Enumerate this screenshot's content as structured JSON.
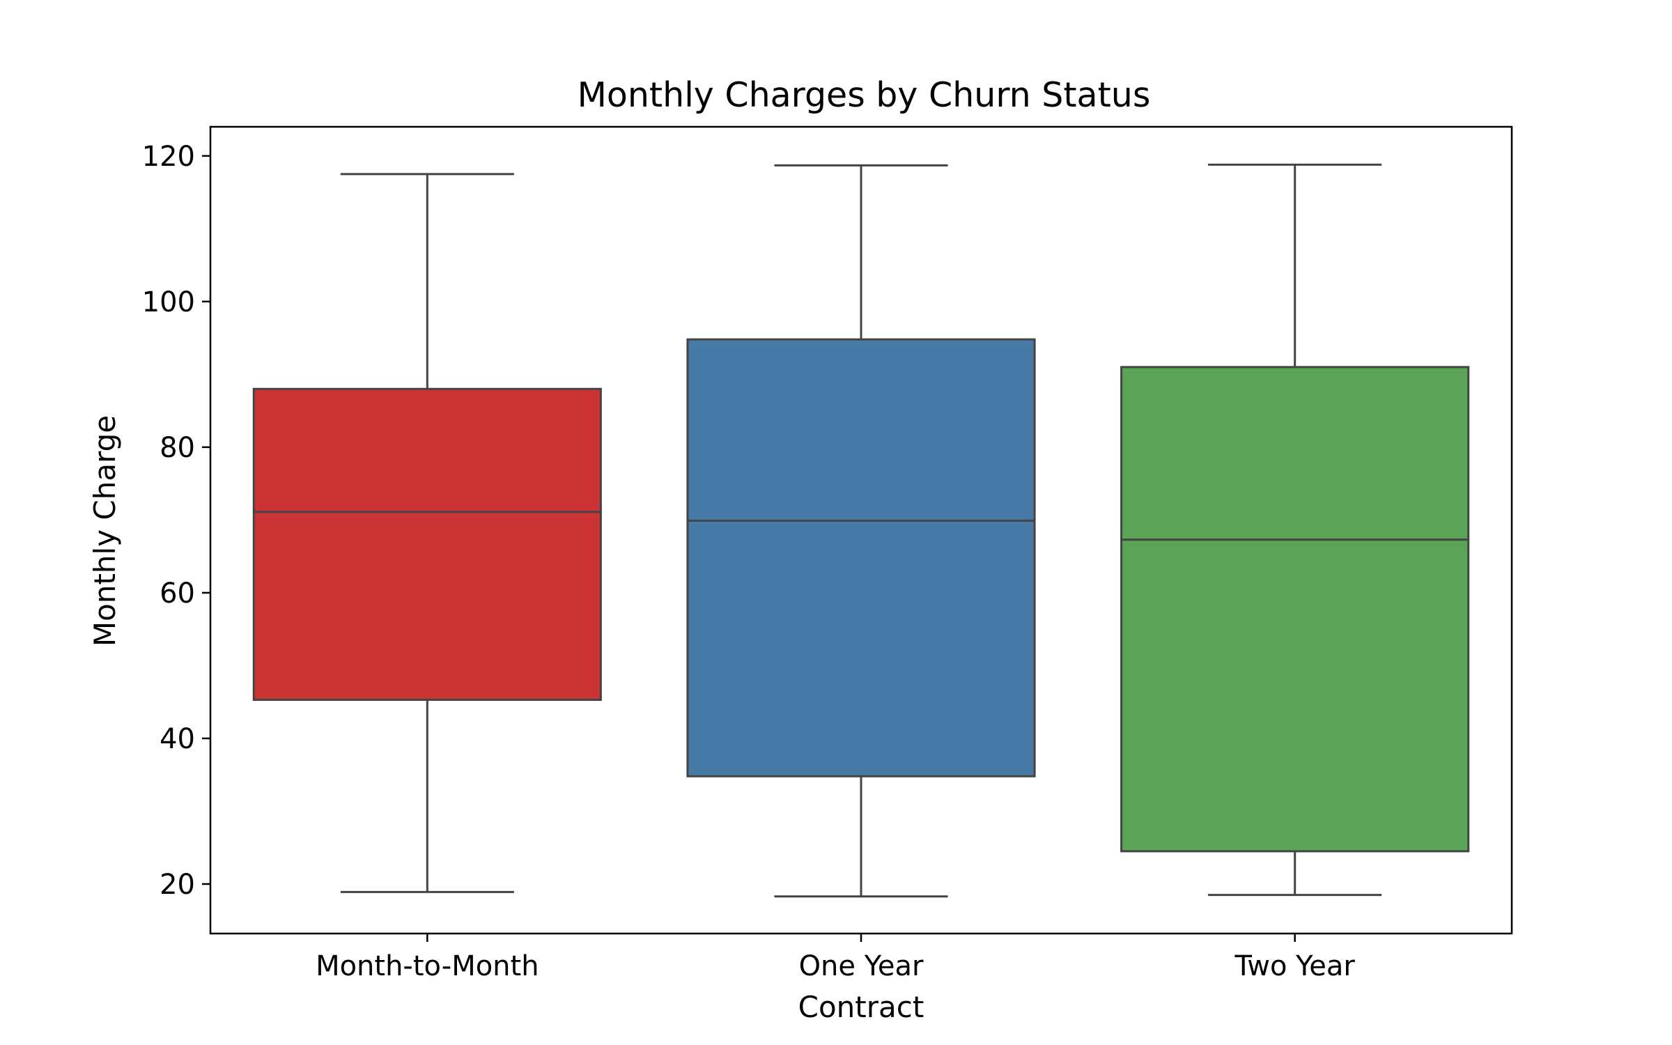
{
  "chart_data": {
    "type": "box",
    "title": "Monthly Charges by Churn Status",
    "xlabel": "Contract",
    "ylabel": "Monthly Charge",
    "ylim": [
      13.2,
      124
    ],
    "yticks": [
      20,
      40,
      60,
      80,
      100,
      120
    ],
    "grid": false,
    "categories": [
      "Month-to-Month",
      "One Year",
      "Two Year"
    ],
    "boxes": [
      {
        "category": "Month-to-Month",
        "whisker_low": 18.9,
        "q1": 45.3,
        "median": 71.1,
        "q3": 88.0,
        "whisker_high": 117.5,
        "color": "#cc3335"
      },
      {
        "category": "One Year",
        "whisker_low": 18.3,
        "q1": 34.8,
        "median": 69.9,
        "q3": 94.8,
        "whisker_high": 118.7,
        "color": "#487aa7"
      },
      {
        "category": "Two Year",
        "whisker_low": 18.5,
        "q1": 24.5,
        "median": 67.3,
        "q3": 91.0,
        "whisker_high": 118.8,
        "color": "#5ba357"
      }
    ]
  }
}
